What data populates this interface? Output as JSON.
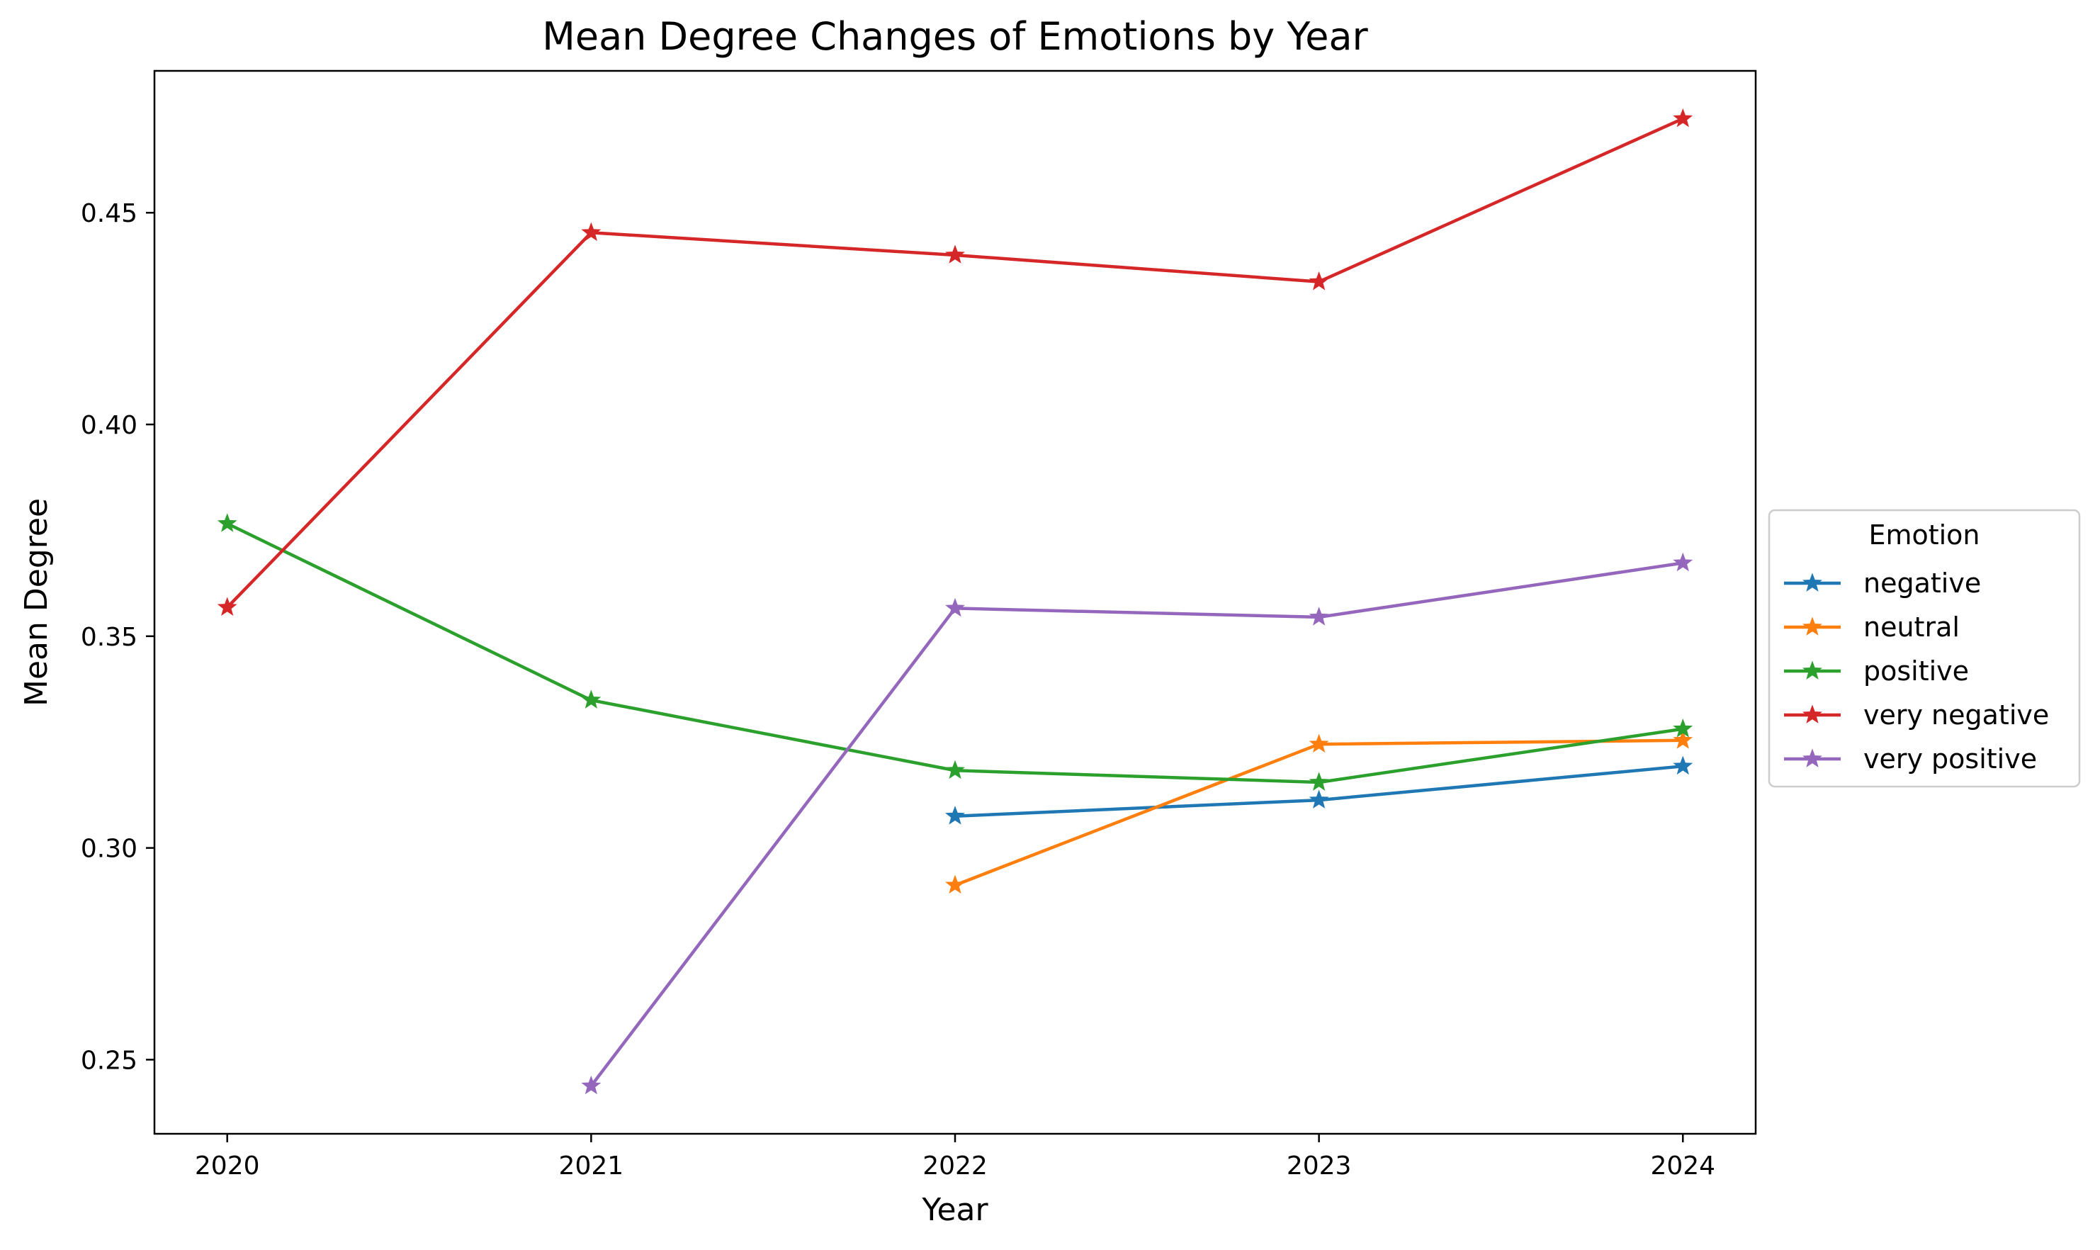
{
  "chart_data": {
    "type": "line",
    "title": "Mean Degree Changes of Emotions by Year",
    "xlabel": "Year",
    "ylabel": "Mean Degree",
    "x": [
      "2020",
      "2021",
      "2022",
      "2023",
      "2024"
    ],
    "xlim": [
      2019.8,
      2024.2
    ],
    "ylim": [
      0.2325,
      0.4835
    ],
    "yticks": [
      "0.25",
      "0.30",
      "0.35",
      "0.40",
      "0.45"
    ],
    "grid": false,
    "marker": "star",
    "legend": {
      "title": "Emotion",
      "placement": "center-right outside"
    },
    "series": [
      {
        "name": "negative",
        "color": "#1f77b4",
        "values": [
          null,
          null,
          0.3075,
          0.3113,
          0.3193
        ]
      },
      {
        "name": "neutral",
        "color": "#ff7f0e",
        "values": [
          null,
          null,
          0.2912,
          0.3245,
          0.3254
        ]
      },
      {
        "name": "positive",
        "color": "#2ca02c",
        "values": [
          0.3766,
          0.3349,
          0.3183,
          0.3155,
          0.3281
        ]
      },
      {
        "name": "very negative",
        "color": "#d62728",
        "values": [
          0.3568,
          0.4453,
          0.44,
          0.4337,
          0.4722
        ]
      },
      {
        "name": "very positive",
        "color": "#9467bd",
        "values": [
          null,
          0.2438,
          0.3566,
          0.3545,
          0.3673
        ]
      }
    ]
  }
}
